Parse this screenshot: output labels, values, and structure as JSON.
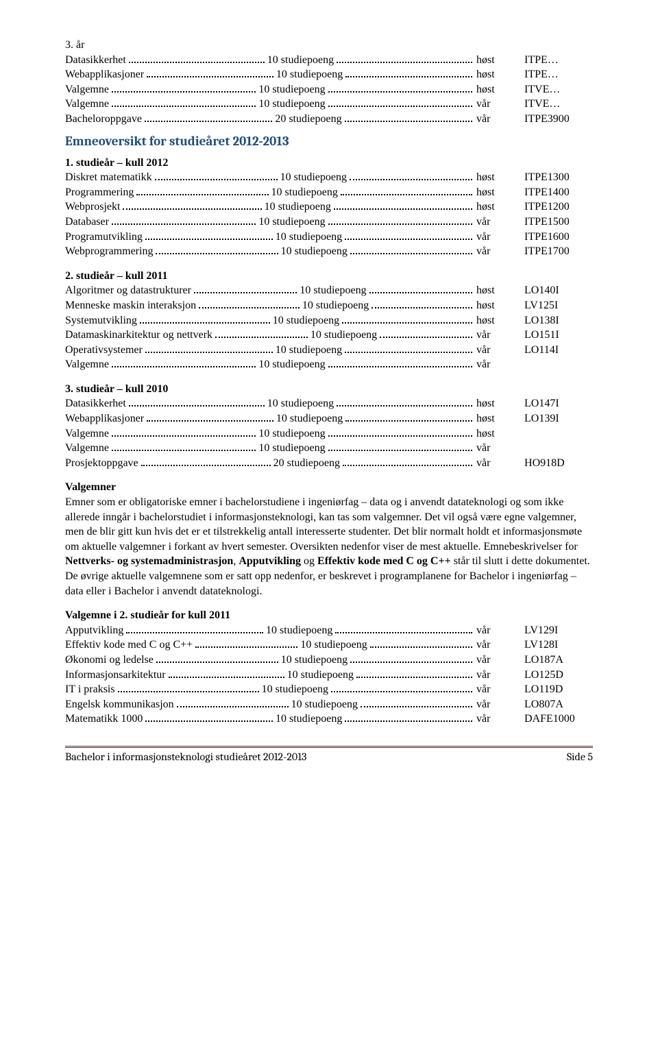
{
  "blocks": {
    "b0": [
      {
        "label": "3. år",
        "plain": true
      },
      {
        "label": "Datasikkerhet",
        "points": "10 studiepoeng",
        "sem": "høst",
        "code": "ITPE…"
      },
      {
        "label": "Webapplikasjoner",
        "points": "10 studiepoeng",
        "sem": "høst",
        "code": "ITPE…"
      },
      {
        "label": "Valgemne",
        "points": "10 studiepoeng",
        "sem": "høst",
        "code": "ITVE…"
      },
      {
        "label": "Valgemne",
        "points": "10 studiepoeng",
        "sem": "vår",
        "code": "ITVE…"
      },
      {
        "label": "Bacheloroppgave",
        "points": "20 studiepoeng",
        "sem": "vår",
        "code": "ITPE3900"
      }
    ],
    "heading": "Emneoversikt for studieåret 2012-2013",
    "b1": [
      {
        "label": "1. studieår – kull 2012",
        "bold": true,
        "plain": true
      },
      {
        "label": "Diskret matematikk",
        "points": "10 studiepoeng",
        "sem": "høst",
        "code": "ITPE1300"
      },
      {
        "label": "Programmering",
        "points": "10 studiepoeng",
        "sem": "høst",
        "code": "ITPE1400"
      },
      {
        "label": "Webprosjekt",
        "points": "10 studiepoeng",
        "sem": "høst",
        "code": "ITPE1200"
      },
      {
        "label": "Databaser",
        "points": "10 studiepoeng",
        "sem": "vår",
        "code": "ITPE1500"
      },
      {
        "label": "Programutvikling",
        "points": "10 studiepoeng",
        "sem": "vår",
        "code": "ITPE1600"
      },
      {
        "label": "Webprogrammering",
        "points": "10 studiepoeng",
        "sem": "vår",
        "code": "ITPE1700"
      }
    ],
    "b2": [
      {
        "label": "2. studieår – kull 2011",
        "bold": true,
        "plain": true
      },
      {
        "label": "Algoritmer og datastrukturer",
        "points": "10 studiepoeng",
        "sem": "høst",
        "code": "LO140I"
      },
      {
        "label": "Menneske maskin interaksjon",
        "points": "10 studiepoeng",
        "sem": "høst",
        "code": "LV125I"
      },
      {
        "label": "Systemutvikling",
        "points": "10 studiepoeng",
        "sem": "høst",
        "code": "LO138I"
      },
      {
        "label": "Datamaskinarkitektur og nettverk",
        "points": " 10 studiepoeng",
        "sem": "vår",
        "code": "LO151I"
      },
      {
        "label": "Operativsystemer",
        "points": "10 studiepoeng",
        "sem": "vår",
        "code": "LO114I"
      },
      {
        "label": "Valgemne",
        "points": "10 studiepoeng",
        "sem": "vår",
        "code": ""
      }
    ],
    "b3": [
      {
        "label": "3. studieår – kull 2010",
        "bold": true,
        "plain": true
      },
      {
        "label": "Datasikkerhet",
        "points": "10 studiepoeng",
        "sem": "høst",
        "code": "LO147I"
      },
      {
        "label": "Webapplikasjoner",
        "points": "10 studiepoeng",
        "sem": "høst",
        "code": "LO139I"
      },
      {
        "label": "Valgemne",
        "points": "10 studiepoeng",
        "sem": "høst",
        "code": ""
      },
      {
        "label": "Valgemne",
        "points": "10 studiepoeng",
        "sem": "vår",
        "code": ""
      },
      {
        "label": "Prosjektoppgave",
        "points": "20 studiepoeng",
        "sem": "vår",
        "code": "HO918D"
      }
    ],
    "valg_h": "Valgemner",
    "valg_p": "Emner som er obligatoriske emner i bachelorstudiene i ingeniørfag – data og i anvendt datateknologi og som ikke allerede inngår i bachelorstudiet i informasjonsteknologi, kan tas som valgemner. Det vil også være egne valgemner, men de blir gitt kun hvis det er et tilstrekkelig antall interesserte studenter. Det blir normalt holdt et informasjonsmøte om aktuelle valgemner i forkant av hvert semester. Oversikten nedenfor viser de mest aktuelle. Emnebeskrivelser for ",
    "valg_b": "Nettverks- og systemadministrasjon",
    "valg_p2": ", ",
    "valg_b2": "Apputvikling",
    "valg_p3": " og ",
    "valg_b3": "Effektiv kode med C og C++",
    "valg_p4": " står til slutt i dette dokumentet. De øvrige aktuelle valgemnene som er satt opp nedenfor, er beskrevet i programplanene for Bachelor i ingeniørfag – data eller i Bachelor i anvendt datateknologi.",
    "b4": [
      {
        "label": "Valgemne i 2. studieår for kull 2011",
        "bold": true,
        "plain": true
      },
      {
        "label": "Apputvikling",
        "points": "10 studiepoeng",
        "sem": "vår",
        "code": "LV129I"
      },
      {
        "label": "Effektiv kode med C og C++",
        "points": "10 studiepoeng",
        "sem": "vår",
        "code": "LV128I"
      },
      {
        "label": "Økonomi og ledelse",
        "points": "10 studiepoeng",
        "sem": "vår",
        "code": "LO187A"
      },
      {
        "label": "Informasjonsarkitektur",
        "points": "10 studiepoeng",
        "sem": "vår",
        "code": "LO125D"
      },
      {
        "label": "IT i praksis",
        "points": "10 studiepoeng",
        "sem": "vår",
        "code": "LO119D"
      },
      {
        "label": "Engelsk kommunikasjon",
        "points": "10 studiepoeng",
        "sem": "vår",
        "code": "LO807A"
      },
      {
        "label": "Matematikk 1000",
        "points": "10 studiepoeng",
        "sem": "vår",
        "code": "DAFE1000"
      }
    ]
  },
  "footer": {
    "left": "Bachelor i informasjonsteknologi studieåret 2012-2013",
    "right": "Side 5"
  }
}
